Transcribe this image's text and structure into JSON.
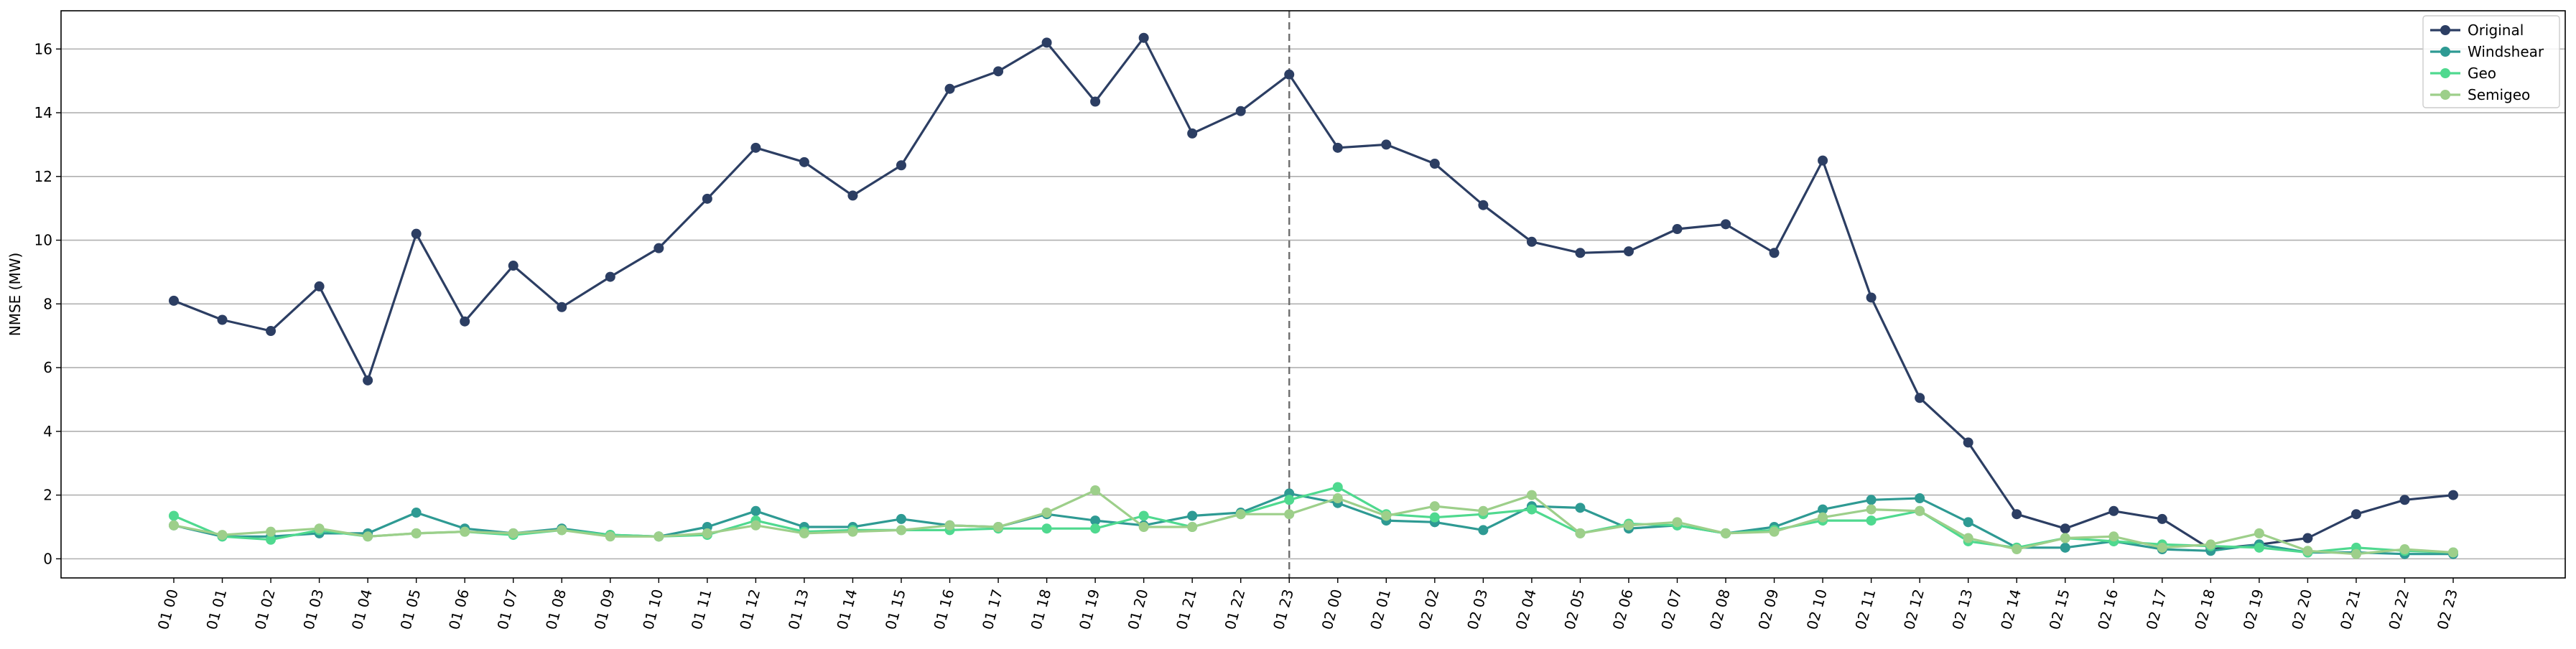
{
  "chart_data": {
    "type": "line",
    "title": "",
    "xlabel": "",
    "ylabel": "NMSE (MW)",
    "ylim": [
      -0.6,
      17.2
    ],
    "yticks": [
      0,
      2,
      4,
      6,
      8,
      10,
      12,
      14,
      16
    ],
    "grid": "horizontal",
    "legend_position": "top-right",
    "vline_at_category": "01 23",
    "categories": [
      "01 00",
      "01 01",
      "01 02",
      "01 03",
      "01 04",
      "01 05",
      "01 06",
      "01 07",
      "01 08",
      "01 09",
      "01 10",
      "01 11",
      "01 12",
      "01 13",
      "01 14",
      "01 15",
      "01 16",
      "01 17",
      "01 18",
      "01 19",
      "01 20",
      "01 21",
      "01 22",
      "01 23",
      "02 00",
      "02 01",
      "02 02",
      "02 03",
      "02 04",
      "02 05",
      "02 06",
      "02 07",
      "02 08",
      "02 09",
      "02 10",
      "02 11",
      "02 12",
      "02 13",
      "02 14",
      "02 15",
      "02 16",
      "02 17",
      "02 18",
      "02 19",
      "02 20",
      "02 21",
      "02 22",
      "02 23"
    ],
    "series": [
      {
        "name": "Original",
        "color": "#2c3e63",
        "values": [
          8.1,
          7.5,
          7.15,
          8.55,
          5.6,
          10.2,
          7.45,
          9.2,
          7.9,
          8.85,
          9.75,
          11.3,
          12.9,
          12.45,
          11.4,
          12.35,
          14.75,
          15.3,
          16.2,
          14.35,
          16.35,
          13.35,
          14.05,
          15.2,
          12.9,
          13.0,
          12.4,
          11.1,
          9.95,
          9.6,
          9.65,
          10.35,
          10.5,
          9.6,
          12.5,
          8.2,
          5.05,
          3.65,
          1.4,
          0.95,
          1.5,
          1.25,
          0.3,
          0.45,
          0.65,
          1.4,
          1.85,
          2.0
        ]
      },
      {
        "name": "Windshear",
        "color": "#2e9a93",
        "values": [
          1.05,
          0.7,
          0.7,
          0.8,
          0.8,
          1.45,
          0.95,
          0.8,
          0.95,
          0.75,
          0.7,
          1.0,
          1.5,
          1.0,
          1.0,
          1.25,
          1.05,
          1.0,
          1.4,
          1.2,
          1.05,
          1.35,
          1.45,
          2.05,
          1.75,
          1.2,
          1.15,
          0.9,
          1.65,
          1.6,
          0.95,
          1.05,
          0.8,
          1.0,
          1.55,
          1.85,
          1.9,
          1.15,
          0.35,
          0.35,
          0.55,
          0.3,
          0.25,
          0.45,
          0.2,
          0.2,
          0.15,
          0.15
        ]
      },
      {
        "name": "Geo",
        "color": "#4fd98f",
        "values": [
          1.35,
          0.7,
          0.6,
          0.9,
          0.7,
          0.8,
          0.85,
          0.75,
          0.9,
          0.75,
          0.7,
          0.75,
          1.2,
          0.85,
          0.9,
          0.9,
          0.9,
          0.95,
          0.95,
          0.95,
          1.35,
          1.0,
          1.4,
          1.85,
          2.25,
          1.4,
          1.3,
          1.4,
          1.55,
          0.8,
          1.1,
          1.05,
          0.8,
          0.9,
          1.2,
          1.2,
          1.5,
          0.55,
          0.35,
          0.65,
          0.55,
          0.45,
          0.4,
          0.35,
          0.2,
          0.35,
          0.25,
          0.2
        ]
      },
      {
        "name": "Semigeo",
        "color": "#9dcf8a",
        "values": [
          1.05,
          0.75,
          0.85,
          0.95,
          0.7,
          0.8,
          0.85,
          0.8,
          0.9,
          0.7,
          0.7,
          0.8,
          1.05,
          0.8,
          0.85,
          0.9,
          1.05,
          1.0,
          1.45,
          2.15,
          1.0,
          1.0,
          1.4,
          1.4,
          1.9,
          1.35,
          1.65,
          1.5,
          2.0,
          0.8,
          1.05,
          1.15,
          0.8,
          0.85,
          1.3,
          1.55,
          1.5,
          0.65,
          0.3,
          0.65,
          0.7,
          0.35,
          0.45,
          0.8,
          0.25,
          0.15,
          0.3,
          0.2
        ]
      }
    ]
  }
}
